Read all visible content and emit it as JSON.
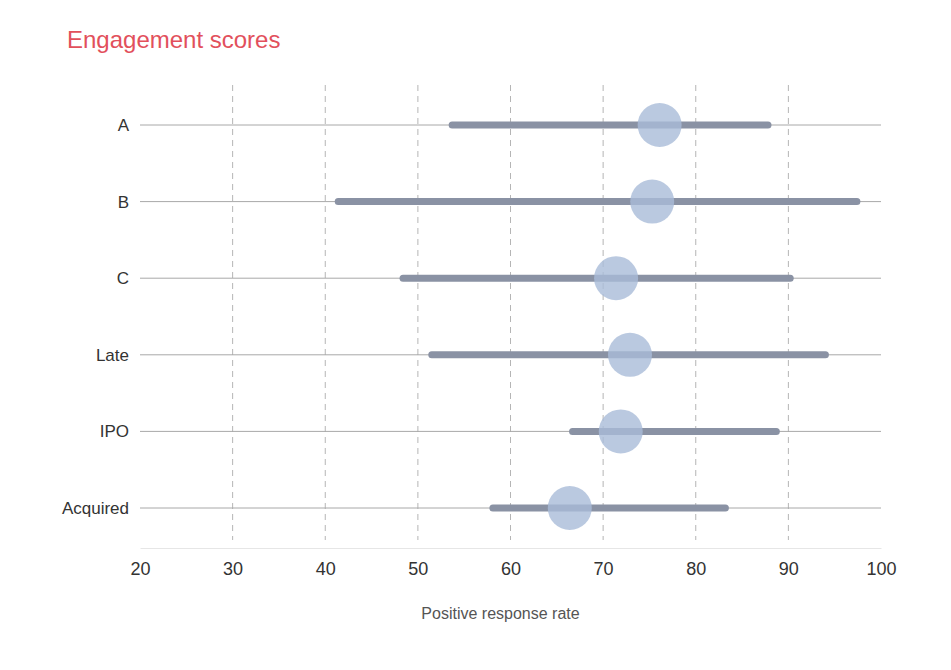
{
  "chart_data": {
    "type": "range",
    "title": "Engagement scores",
    "xlabel": "Positive response rate",
    "categories": [
      "A",
      "B",
      "C",
      "Late",
      "IPO",
      "Acquired"
    ],
    "low": [
      53.7,
      41.4,
      48.4,
      51.5,
      66.7,
      58.1
    ],
    "high": [
      87.8,
      97.4,
      90.2,
      94,
      88.7,
      83.2
    ],
    "values": [
      76.1,
      75.3,
      71.4,
      72.9,
      71.9,
      66.4
    ],
    "xlim": [
      20,
      100
    ],
    "xticks": [
      20,
      30,
      40,
      50,
      60,
      70,
      80,
      90,
      100
    ],
    "orientation": "horizontal",
    "grid": true
  }
}
